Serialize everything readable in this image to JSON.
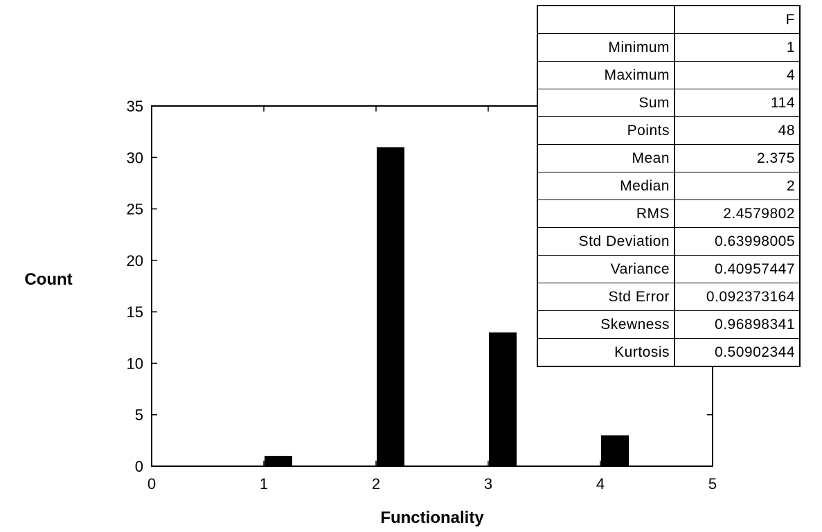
{
  "chart_data": {
    "type": "bar",
    "title": "",
    "xlabel": "Functionality",
    "ylabel": "Count",
    "x": [
      1,
      2,
      3,
      4
    ],
    "values": [
      1,
      31,
      13,
      3
    ],
    "xlim": [
      0,
      5
    ],
    "ylim": [
      0,
      35
    ],
    "xticks": [
      "0",
      "1",
      "2",
      "3",
      "4",
      "5"
    ],
    "yticks": [
      "0",
      "5",
      "10",
      "15",
      "20",
      "25",
      "30",
      "35"
    ],
    "bar_color": "#000000",
    "grid": false,
    "legend": "none"
  },
  "stats": {
    "column_header": "F",
    "rows": [
      {
        "label": "Minimum",
        "value": "1"
      },
      {
        "label": "Maximum",
        "value": "4"
      },
      {
        "label": "Sum",
        "value": "114"
      },
      {
        "label": "Points",
        "value": "48"
      },
      {
        "label": "Mean",
        "value": "2.375"
      },
      {
        "label": "Median",
        "value": "2"
      },
      {
        "label": "RMS",
        "value": "2.4579802"
      },
      {
        "label": "Std Deviation",
        "value": "0.63998005"
      },
      {
        "label": "Variance",
        "value": "0.40957447"
      },
      {
        "label": "Std Error",
        "value": "0.092373164"
      },
      {
        "label": "Skewness",
        "value": "0.96898341"
      },
      {
        "label": "Kurtosis",
        "value": "0.50902344"
      }
    ]
  }
}
